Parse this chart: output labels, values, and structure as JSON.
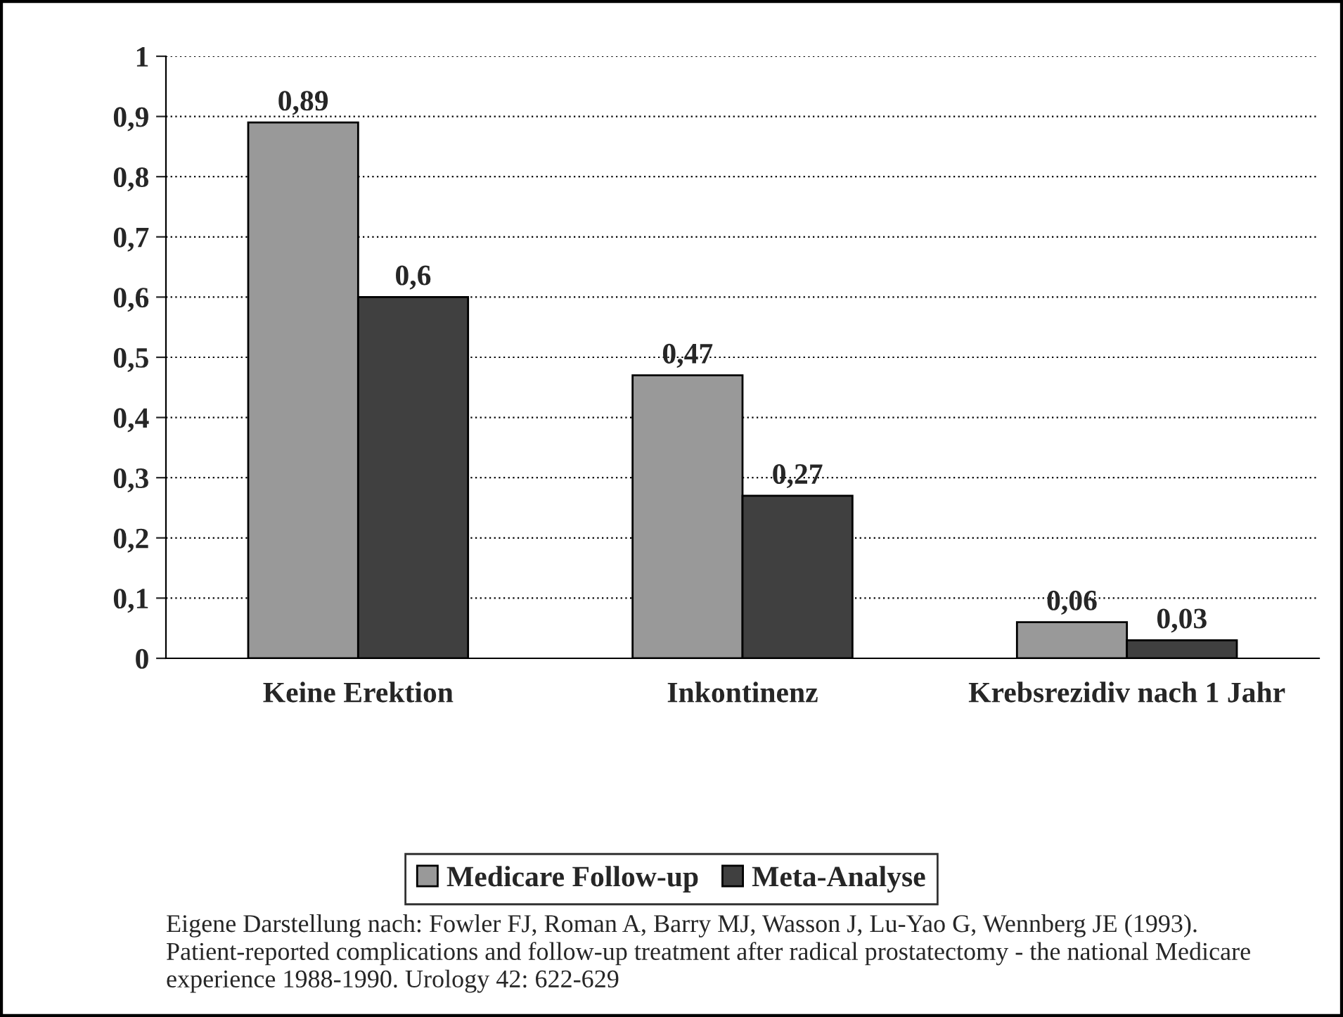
{
  "chart_data": {
    "type": "bar",
    "categories": [
      "Keine Erektion",
      "Inkontinenz",
      "Krebsrezidiv nach 1 Jahr"
    ],
    "series": [
      {
        "name": "Medicare Follow-up",
        "color": "#999999",
        "values": [
          0.89,
          0.47,
          0.06
        ],
        "value_labels": [
          "0,89",
          "0,47",
          "0,06"
        ]
      },
      {
        "name": "Meta-Analyse",
        "color": "#404040",
        "values": [
          0.6,
          0.27,
          0.03
        ],
        "value_labels": [
          "0,6",
          "0,27",
          "0,03"
        ]
      }
    ],
    "ylim": [
      0,
      1
    ],
    "yticks": [
      {
        "value": 0,
        "label": "0"
      },
      {
        "value": 0.1,
        "label": "0,1"
      },
      {
        "value": 0.2,
        "label": "0,2"
      },
      {
        "value": 0.3,
        "label": "0,3"
      },
      {
        "value": 0.4,
        "label": "0,4"
      },
      {
        "value": 0.5,
        "label": "0,5"
      },
      {
        "value": 0.6,
        "label": "0,6"
      },
      {
        "value": 0.7,
        "label": "0,7"
      },
      {
        "value": 0.8,
        "label": "0,8"
      },
      {
        "value": 0.9,
        "label": "0,9"
      },
      {
        "value": 1,
        "label": "1"
      }
    ],
    "grid": "y",
    "legend": "bottom",
    "annotations": [
      "Eigene Darstellung nach: Fowler FJ, Roman A, Barry MJ, Wasson J, Lu-Yao G, Wennberg JE (1993). Patient-reported complications and follow-up treatment after radical prostatectomy - the national Medicare experience 1988-1990. Urology 42: 622-629"
    ]
  }
}
